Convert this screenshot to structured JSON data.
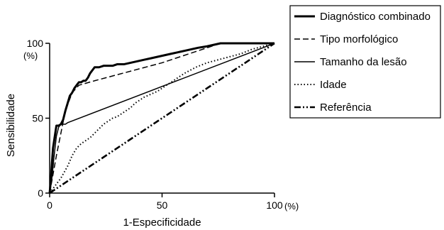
{
  "chart_data": {
    "type": "line",
    "xlabel": "1-Especificidade",
    "ylabel": "Sensibilidade",
    "x_unit": "(%)",
    "y_unit": "(%)",
    "xlim": [
      0,
      100
    ],
    "ylim": [
      0,
      100
    ],
    "x_ticks": [
      0,
      50,
      100
    ],
    "y_ticks": [
      0,
      50,
      100
    ],
    "grid": false,
    "legend_position": "top-right",
    "series": [
      {
        "name": "Diagnóstico combinado",
        "style": "thick-solid",
        "x": [
          0,
          0.5,
          1,
          1.5,
          2,
          2.5,
          3,
          4,
          5,
          6,
          7,
          8,
          9,
          10,
          11,
          12,
          13,
          14,
          15,
          16,
          17,
          18,
          19,
          20,
          22,
          24,
          26,
          28,
          30,
          33,
          36,
          39,
          42,
          45,
          48,
          51,
          54,
          57,
          60,
          63,
          66,
          70,
          73,
          76,
          80,
          85,
          90,
          95,
          100
        ],
        "y": [
          0,
          8,
          20,
          30,
          35,
          40,
          45,
          45,
          46,
          49,
          55,
          60,
          65,
          67,
          70,
          72,
          74,
          74,
          75,
          75,
          77,
          80,
          82,
          84,
          84,
          85,
          85,
          85,
          86,
          86,
          87,
          88,
          89,
          90,
          91,
          92,
          93,
          94,
          95,
          96,
          97,
          98,
          99,
          100,
          100,
          100,
          100,
          100,
          100
        ]
      },
      {
        "name": "Tipo morfológico",
        "style": "long-dash",
        "x": [
          0,
          3,
          7,
          10,
          13,
          20,
          30,
          40,
          50,
          60,
          70,
          76,
          85,
          100
        ],
        "y": [
          0,
          25,
          55,
          67,
          72,
          75,
          79,
          83,
          87,
          92,
          97,
          100,
          100,
          100
        ]
      },
      {
        "name": "Tamanho da lesão",
        "style": "thin-solid",
        "x": [
          0,
          1,
          2,
          3,
          4,
          5,
          6,
          7,
          8,
          100
        ],
        "y": [
          0,
          10,
          25,
          38,
          44,
          46,
          46,
          46,
          47,
          100
        ]
      },
      {
        "name": "Idade",
        "style": "dotted",
        "x": [
          0,
          2,
          5,
          8,
          10,
          12,
          14,
          16,
          18,
          20,
          22,
          24,
          26,
          28,
          30,
          32,
          34,
          36,
          38,
          40,
          42,
          45,
          48,
          52,
          56,
          60,
          65,
          70,
          75,
          80,
          85,
          90,
          95,
          100
        ],
        "y": [
          0,
          4,
          10,
          18,
          25,
          30,
          33,
          35,
          37,
          40,
          43,
          46,
          48,
          50,
          51,
          53,
          55,
          57,
          60,
          62,
          64,
          66,
          68,
          72,
          76,
          80,
          84,
          87,
          89,
          91,
          93,
          96,
          98,
          100
        ]
      },
      {
        "name": "Referência",
        "style": "dash-dot-dot",
        "x": [
          0,
          100
        ],
        "y": [
          0,
          100
        ]
      }
    ]
  }
}
